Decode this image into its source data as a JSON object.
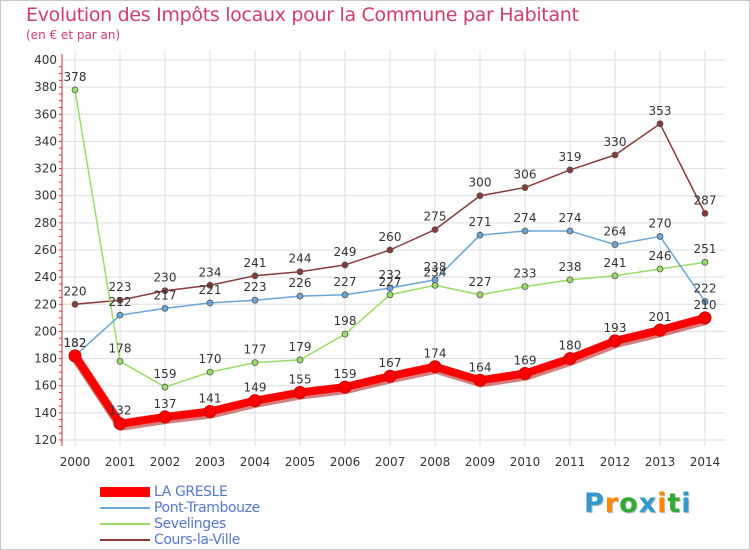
{
  "chart_data": {
    "type": "line",
    "title": "Evolution des Impôts locaux pour la Commune par Habitant",
    "subtitle": "(en € et par an)",
    "xlabel": "",
    "ylabel": "",
    "categories": [
      "2000",
      "2001",
      "2002",
      "2003",
      "2004",
      "2005",
      "2006",
      "2007",
      "2008",
      "2009",
      "2010",
      "2011",
      "2012",
      "2013",
      "2014"
    ],
    "ylim": [
      120,
      400
    ],
    "yticks": [
      120,
      140,
      160,
      180,
      200,
      220,
      240,
      260,
      280,
      300,
      320,
      340,
      360,
      380,
      400
    ],
    "ytick_labels": [
      "120",
      "140",
      "160",
      "180",
      "200",
      "220",
      "240",
      "260",
      "280",
      "300",
      "320",
      "340",
      "360",
      "380",
      "400"
    ],
    "grid": true,
    "legend_position": "bottom-left",
    "series": [
      {
        "name": "LA GRESLE",
        "color": "#ff0000",
        "values": [
          182,
          132,
          137,
          141,
          149,
          155,
          159,
          167,
          174,
          164,
          169,
          180,
          193,
          201,
          210
        ]
      },
      {
        "name": "Pont-Trambouze",
        "color": "#6aa6d8",
        "values": [
          182,
          212,
          217,
          221,
          223,
          226,
          227,
          232,
          238,
          271,
          274,
          274,
          264,
          270,
          222
        ]
      },
      {
        "name": "Sevelinges",
        "color": "#99dd66",
        "values": [
          378,
          178,
          159,
          170,
          177,
          179,
          198,
          227,
          234,
          227,
          233,
          238,
          241,
          246,
          251
        ]
      },
      {
        "name": "Cours-la-Ville",
        "color": "#8b3a3a",
        "values": [
          220,
          223,
          230,
          234,
          241,
          244,
          249,
          260,
          275,
          300,
          306,
          319,
          330,
          353,
          287
        ]
      }
    ]
  },
  "brand": {
    "letters": [
      "P",
      "r",
      "o",
      "x",
      "i",
      "t",
      "i"
    ],
    "colors": [
      "#3399cc",
      "#ff8800",
      "#33aa33",
      "#3399cc",
      "#ff8800",
      "#33aa33",
      "#3399cc"
    ]
  }
}
